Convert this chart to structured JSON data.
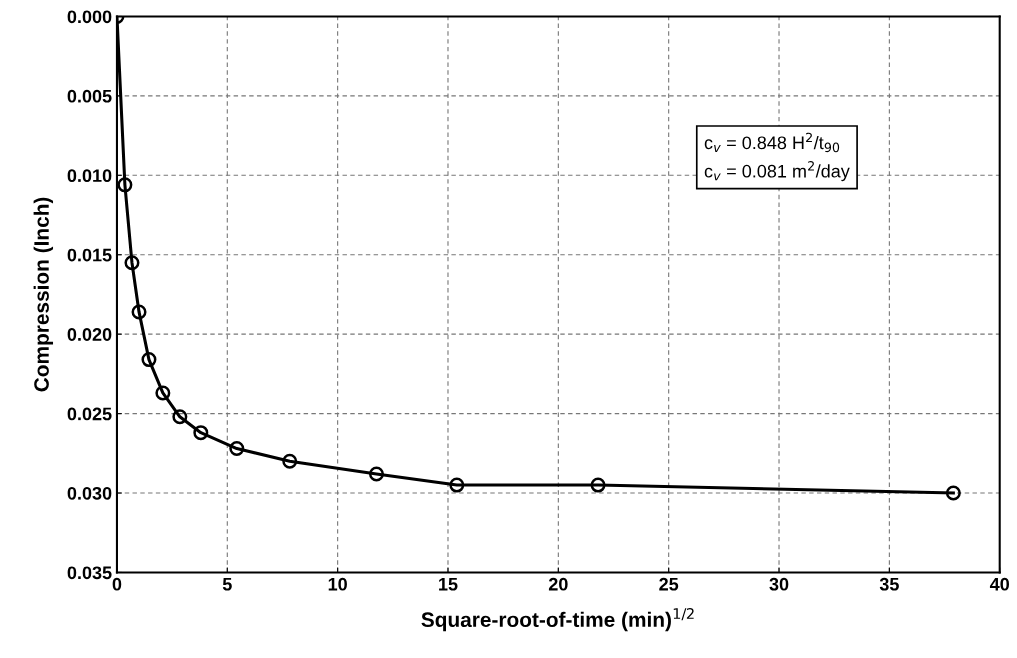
{
  "chart_data": {
    "type": "line",
    "xlabel": "Square-root-of-time (min)$^{1/2}$",
    "ylabel": "Compression (Inch)",
    "x": [
      0,
      0.36,
      0.68,
      1.0,
      1.45,
      2.08,
      2.85,
      3.8,
      5.43,
      7.83,
      11.76,
      15.4,
      21.8,
      37.9
    ],
    "series": [
      {
        "color": "#000000",
        "values": [
          0.0,
          0.0106,
          0.0155,
          0.0186,
          0.0216,
          0.0237,
          0.0252,
          0.0262,
          0.0272,
          0.028,
          0.0288,
          0.0295,
          0.0295,
          0.03
        ]
      }
    ],
    "xlim": [
      0,
      40
    ],
    "xticks": [
      0,
      5,
      10,
      15,
      20,
      25,
      30,
      35,
      40
    ],
    "ylim": [
      0.035,
      0.0
    ],
    "yticks": [
      {
        "value": 0.0,
        "label": "0.000"
      },
      {
        "value": 0.005,
        "label": "0.005"
      },
      {
        "value": 0.01,
        "label": "0.010"
      },
      {
        "value": 0.015,
        "label": "0.015"
      },
      {
        "value": 0.02,
        "label": "0.020"
      },
      {
        "value": 0.025,
        "label": "0.025"
      },
      {
        "value": 0.03,
        "label": "0.030"
      },
      {
        "value": 0.035,
        "label": "0.035"
      }
    ],
    "annotations": [
      "c$_{v}$ = 0.848 H$^{2}$/t$_{90}$",
      "c$_{v}$ = 0.081 m$^{2}$/day"
    ],
    "grid": true,
    "marker": "circle",
    "line_style": "solid"
  }
}
